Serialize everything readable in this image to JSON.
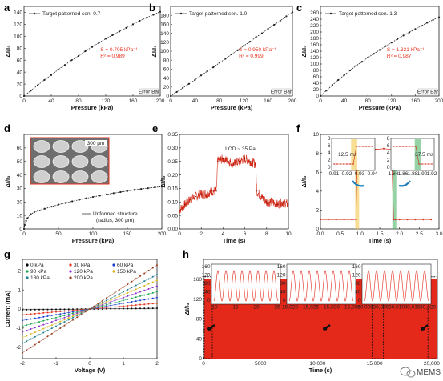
{
  "watermark": {
    "icon": "wechat-icon",
    "text": "MEMS"
  },
  "chart_data": [
    {
      "panel": "a",
      "type": "line",
      "legend": "Target patterned sen. 0.7",
      "annot_s": "S = 0.705 kPa⁻¹",
      "annot_r2": "R² = 0.989",
      "errorbar_text": "Error Bar",
      "ylabel": "ΔI/I₀",
      "xlabel": "Pressure (kPa)",
      "xlim": [
        0,
        200
      ],
      "ylim": [
        0,
        150
      ],
      "xticks": [
        "0",
        "40",
        "80",
        "120",
        "160",
        "200"
      ],
      "yticks": [
        "0",
        "20",
        "40",
        "60",
        "80",
        "100",
        "120",
        "140"
      ],
      "x": [
        0,
        10,
        20,
        30,
        40,
        50,
        60,
        70,
        80,
        90,
        100,
        110,
        120,
        130,
        140,
        150,
        160,
        170,
        180,
        190,
        200
      ],
      "y": [
        0,
        9,
        18,
        27,
        35,
        44,
        52,
        60,
        67,
        75,
        82,
        89,
        96,
        102,
        108,
        114,
        120,
        126,
        131,
        136,
        141
      ]
    },
    {
      "panel": "b",
      "type": "line",
      "legend": "Target patterned sen. 1.0",
      "annot_s": "S = 0.950 kPa⁻¹",
      "annot_r2": "R² = 0.999",
      "errorbar_text": "Error Bar",
      "ylabel": "ΔI/I₀",
      "xlabel": "Pressure (kPa)",
      "xlim": [
        0,
        200
      ],
      "ylim": [
        0,
        200
      ],
      "xticks": [
        "0",
        "40",
        "80",
        "120",
        "160",
        "200"
      ],
      "yticks": [
        "0",
        "20",
        "40",
        "60",
        "80",
        "100",
        "120",
        "140",
        "160",
        "180"
      ],
      "x": [
        0,
        10,
        20,
        30,
        40,
        50,
        60,
        70,
        80,
        90,
        100,
        110,
        120,
        130,
        140,
        150,
        160,
        170,
        180,
        190,
        200
      ],
      "y": [
        0,
        9,
        18,
        27,
        36,
        46,
        55,
        64,
        74,
        83,
        93,
        102,
        112,
        121,
        131,
        140,
        150,
        159,
        168,
        178,
        187
      ]
    },
    {
      "panel": "c",
      "type": "line",
      "legend": "Target patterned sen. 1.3",
      "annot_s": "S = 1.321 kPa⁻¹",
      "annot_r2": "R² = 0.987",
      "errorbar_text": "Error Bar",
      "ylabel": "ΔI/I₀",
      "xlabel": "Pressure (kPa)",
      "xlim": [
        0,
        200
      ],
      "ylim": [
        0,
        280
      ],
      "xticks": [
        "0",
        "40",
        "80",
        "120",
        "160",
        "200"
      ],
      "yticks": [
        "0",
        "20",
        "40",
        "60",
        "80",
        "100",
        "120",
        "140",
        "160",
        "180",
        "200",
        "220",
        "240",
        "260"
      ],
      "x": [
        0,
        10,
        20,
        30,
        40,
        50,
        60,
        70,
        80,
        90,
        100,
        110,
        120,
        130,
        140,
        150,
        160,
        170,
        180,
        190,
        200
      ],
      "y": [
        0,
        17,
        34,
        50,
        65,
        80,
        94,
        107,
        120,
        132,
        144,
        156,
        167,
        178,
        189,
        199,
        209,
        219,
        229,
        238,
        246
      ]
    },
    {
      "panel": "d",
      "type": "line",
      "legend": "Unformed structure",
      "legend2": "(radius, 300 μm)",
      "inset_scale": "300 μm",
      "ylabel": "ΔI/I₀",
      "xlabel": "Pressure (kPa)",
      "xlim": [
        0,
        200
      ],
      "ylim": [
        0,
        70
      ],
      "xticks": [
        "0",
        "50",
        "100",
        "150",
        "200"
      ],
      "yticks": [
        "0",
        "10",
        "20",
        "30",
        "40",
        "50",
        "60"
      ],
      "x": [
        0,
        1,
        3,
        5,
        10,
        15,
        20,
        30,
        40,
        50,
        60,
        70,
        80,
        90,
        100,
        110,
        120,
        130,
        140,
        150,
        160,
        170,
        180,
        190,
        200
      ],
      "y": [
        0,
        3,
        6,
        8,
        11,
        12.5,
        13.5,
        15,
        16.5,
        18,
        19.3,
        20.5,
        21.6,
        22.7,
        23.7,
        24.7,
        25.6,
        26.5,
        27.3,
        28.1,
        28.9,
        29.6,
        30.2,
        30.8,
        31.3
      ]
    },
    {
      "panel": "e",
      "type": "line",
      "annot": "LOD ~ 35 Pa",
      "ylabel": "ΔI/I₀",
      "xlabel": "Time (s)",
      "xlim": [
        0,
        10
      ],
      "ylim": [
        0,
        0.35
      ],
      "xticks": [
        "0",
        "2",
        "4",
        "6",
        "8",
        "10"
      ],
      "yticks": [
        "0.00",
        "0.05",
        "0.10",
        "0.15",
        "0.20",
        "0.25",
        "0.30",
        "0.35"
      ],
      "x": [
        0,
        0.5,
        1,
        1.5,
        2,
        2.5,
        3,
        3.4,
        3.5,
        4,
        4.5,
        5,
        5.5,
        6,
        6.5,
        7,
        7.1,
        7.5,
        8,
        8.5,
        9,
        9.5,
        10
      ],
      "y": [
        0.07,
        0.09,
        0.11,
        0.12,
        0.13,
        0.13,
        0.14,
        0.14,
        0.25,
        0.26,
        0.25,
        0.24,
        0.25,
        0.26,
        0.25,
        0.24,
        0.14,
        0.12,
        0.1,
        0.1,
        0.09,
        0.1,
        0.09
      ]
    },
    {
      "panel": "f",
      "type": "line",
      "ylabel": "ΔI/I₀",
      "xlabel": "Time (s)",
      "xlim": [
        0,
        3
      ],
      "ylim": [
        0,
        10
      ],
      "xticks": [
        "0.0",
        "0.5",
        "1.0",
        "1.5",
        "2.0",
        "2.5",
        "3.0"
      ],
      "yticks": [
        "0",
        "2",
        "4",
        "6",
        "8",
        "10"
      ],
      "x": [
        0,
        0.2,
        0.4,
        0.6,
        0.8,
        0.9,
        0.93,
        1.0,
        1.2,
        1.4,
        1.6,
        1.8,
        1.85,
        1.9,
        2.0,
        2.2,
        2.4,
        2.6,
        2.8
      ],
      "y": [
        1,
        1,
        1,
        1,
        1,
        1,
        8,
        8,
        8.2,
        8.4,
        8.5,
        8.4,
        1,
        1,
        1,
        1,
        1,
        1,
        1
      ],
      "inset1": {
        "annot": "12.5 ms",
        "xticks": [
          "0.91",
          "0.92",
          "0.93",
          "0.94"
        ],
        "yticks": [
          "0",
          "2",
          "4",
          "6",
          "8"
        ]
      },
      "inset2": {
        "annot": "37.5 ms",
        "xticks": [
          "1.84",
          "1.86",
          "1.88",
          "1.90",
          "1.92"
        ],
        "yticks": [
          "0",
          "2",
          "4",
          "6",
          "8"
        ]
      }
    },
    {
      "panel": "g",
      "type": "line",
      "ylabel": "Current (mA)",
      "xlabel": "Voltage (V)",
      "xlim": [
        -2,
        2
      ],
      "ylim": [
        -2.6,
        2.6
      ],
      "xticks": [
        "-2",
        "-1",
        "0",
        "1",
        "2"
      ],
      "yticks": [
        "-2",
        "-1",
        "0",
        "1",
        "2"
      ],
      "series": [
        {
          "name": "0 kPa",
          "color": "#000000",
          "slope": 0.02
        },
        {
          "name": "30 kPa",
          "color": "#e8321e",
          "slope": 0.15
        },
        {
          "name": "60 kPa",
          "color": "#1c3ecf",
          "slope": 0.3
        },
        {
          "name": "90 kPa",
          "color": "#1aa84a",
          "slope": 0.45
        },
        {
          "name": "120 kPa",
          "color": "#8b2ec9",
          "slope": 0.6
        },
        {
          "name": "150 kPa",
          "color": "#d6b21a",
          "slope": 0.75
        },
        {
          "name": "180 kPa",
          "color": "#1b7f8f",
          "slope": 0.9
        },
        {
          "name": "200 kPa",
          "color": "#9a3b1e",
          "slope": 1.15
        }
      ]
    },
    {
      "panel": "h",
      "type": "line",
      "ylabel": "ΔI/I₀",
      "xlabel": "Time (s)",
      "xlim": [
        0,
        20500
      ],
      "ylim": [
        0,
        200
      ],
      "xticks": [
        "0",
        "5000",
        "10,000",
        "15,000",
        "20,000"
      ],
      "yticks": [
        "0",
        "40",
        "80",
        "120",
        "160"
      ],
      "band_value": 160,
      "insets": [
        {
          "xticks": [
            "10",
            "15",
            "20",
            "25"
          ],
          "yticks": [
            "0",
            "40",
            "80",
            "120",
            "160"
          ]
        },
        {
          "xticks": [
            "15,020",
            "15,025",
            "15,030",
            "15,035"
          ],
          "yticks": [
            "0",
            "40",
            "80",
            "120",
            "160"
          ]
        },
        {
          "xticks": [
            "30,000",
            "30,005",
            "30,010",
            "30,015",
            "30,020"
          ],
          "yticks": [
            "0",
            "40",
            "80",
            "120",
            "160"
          ]
        }
      ]
    }
  ]
}
